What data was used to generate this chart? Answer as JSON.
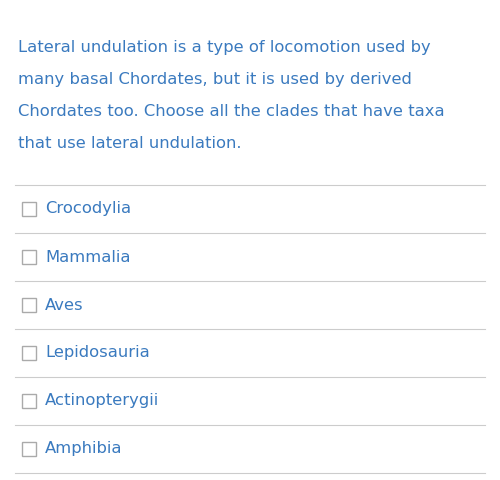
{
  "background_color": "#ffffff",
  "question_lines": [
    "Lateral undulation is a type of locomotion used by",
    "many basal Chordates, but it is used by derived",
    "Chordates too. Choose all the clades that have taxa",
    "that use lateral undulation."
  ],
  "question_color": "#3a7abf",
  "options": [
    "Crocodylia",
    "Mammalia",
    "Aves",
    "Lepidosauria",
    "Actinopterygii",
    "Amphibia"
  ],
  "option_color": "#3a7abf",
  "checkbox_edge_color": "#aaaaaa",
  "divider_color": "#cccccc",
  "question_fontsize": 11.8,
  "option_fontsize": 11.8,
  "fig_width": 5.0,
  "fig_height": 4.8,
  "dpi": 100
}
